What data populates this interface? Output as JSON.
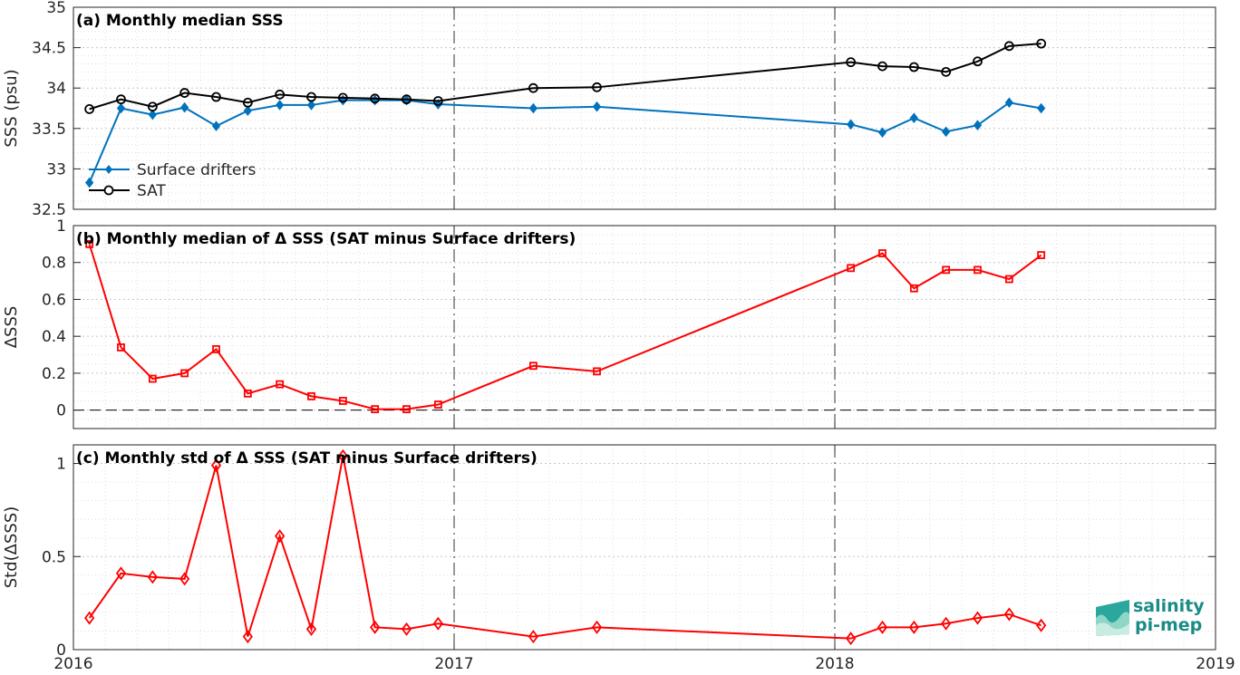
{
  "chart_data": [
    {
      "type": "line",
      "title": "(a) Monthly median SSS",
      "ylabel": "SSS (psu)",
      "ylim": [
        32.5,
        35
      ],
      "yticks": [
        32.5,
        33,
        33.5,
        34,
        34.5,
        35
      ],
      "xlim": [
        2016.0,
        2019.0
      ],
      "xticks": [
        2016,
        2017,
        2018,
        2019
      ],
      "grid": true,
      "legend_position": "bottom-left",
      "series": [
        {
          "name": "Surface drifters",
          "color": "#0072bd",
          "marker": "diamond-filled",
          "x": [
            2016.042,
            2016.125,
            2016.208,
            2016.292,
            2016.375,
            2016.458,
            2016.542,
            2016.625,
            2016.708,
            2016.792,
            2016.875,
            2016.958,
            2017.208,
            2017.375,
            2018.042,
            2018.125,
            2018.208,
            2018.292,
            2018.375,
            2018.458,
            2018.542
          ],
          "y": [
            32.83,
            33.75,
            33.67,
            33.76,
            33.53,
            33.72,
            33.79,
            33.79,
            33.85,
            33.85,
            33.85,
            33.8,
            33.75,
            33.77,
            33.55,
            33.45,
            33.63,
            33.46,
            33.54,
            33.82,
            33.75
          ]
        },
        {
          "name": "SAT",
          "color": "#000000",
          "marker": "circle-open",
          "x": [
            2016.042,
            2016.125,
            2016.208,
            2016.292,
            2016.375,
            2016.458,
            2016.542,
            2016.625,
            2016.708,
            2016.792,
            2016.875,
            2016.958,
            2017.208,
            2017.375,
            2018.042,
            2018.125,
            2018.208,
            2018.292,
            2018.375,
            2018.458,
            2018.542
          ],
          "y": [
            33.74,
            33.86,
            33.77,
            33.94,
            33.89,
            33.82,
            33.92,
            33.89,
            33.88,
            33.87,
            33.86,
            33.84,
            34.0,
            34.01,
            34.32,
            34.27,
            34.26,
            34.2,
            34.33,
            34.52,
            34.55
          ]
        }
      ]
    },
    {
      "type": "line",
      "title": "(b) Monthly median of Δ SSS (SAT minus Surface drifters)",
      "ylabel": "ΔSSS",
      "ylim": [
        -0.1,
        1
      ],
      "yticks": [
        0,
        0.2,
        0.4,
        0.6,
        0.8,
        1
      ],
      "xlim": [
        2016.0,
        2019.0
      ],
      "xticks": [
        2016,
        2017,
        2018,
        2019
      ],
      "grid": true,
      "series": [
        {
          "color": "#ff0000",
          "marker": "square-open",
          "x": [
            2016.042,
            2016.125,
            2016.208,
            2016.292,
            2016.375,
            2016.458,
            2016.542,
            2016.625,
            2016.708,
            2016.792,
            2016.875,
            2016.958,
            2017.208,
            2017.375,
            2018.042,
            2018.125,
            2018.208,
            2018.292,
            2018.375,
            2018.458,
            2018.542
          ],
          "y": [
            0.9,
            0.34,
            0.17,
            0.2,
            0.33,
            0.09,
            0.14,
            0.075,
            0.05,
            0.005,
            0.005,
            0.03,
            0.24,
            0.21,
            0.77,
            0.85,
            0.66,
            0.76,
            0.76,
            0.71,
            0.84
          ]
        }
      ]
    },
    {
      "type": "line",
      "title": "(c) Monthly std of Δ SSS (SAT minus Surface drifters)",
      "ylabel": "Std(ΔSSS)",
      "ylim": [
        0,
        1.1
      ],
      "yticks": [
        0,
        0.5,
        1
      ],
      "xlim": [
        2016.0,
        2019.0
      ],
      "xticks": [
        2016,
        2017,
        2018,
        2019
      ],
      "grid": true,
      "series": [
        {
          "color": "#ff0000",
          "marker": "diamond-open",
          "x": [
            2016.042,
            2016.125,
            2016.208,
            2016.292,
            2016.375,
            2016.458,
            2016.542,
            2016.625,
            2016.708,
            2016.792,
            2016.875,
            2016.958,
            2017.208,
            2017.375,
            2018.042,
            2018.125,
            2018.208,
            2018.292,
            2018.375,
            2018.458,
            2018.542
          ],
          "y": [
            0.17,
            0.41,
            0.39,
            0.38,
            0.99,
            0.07,
            0.61,
            0.11,
            1.04,
            0.12,
            0.11,
            0.14,
            0.07,
            0.12,
            0.06,
            0.12,
            0.12,
            0.14,
            0.17,
            0.19,
            0.13
          ]
        }
      ]
    }
  ],
  "logo": {
    "line1": "salinity",
    "line2": "pi-mep"
  }
}
